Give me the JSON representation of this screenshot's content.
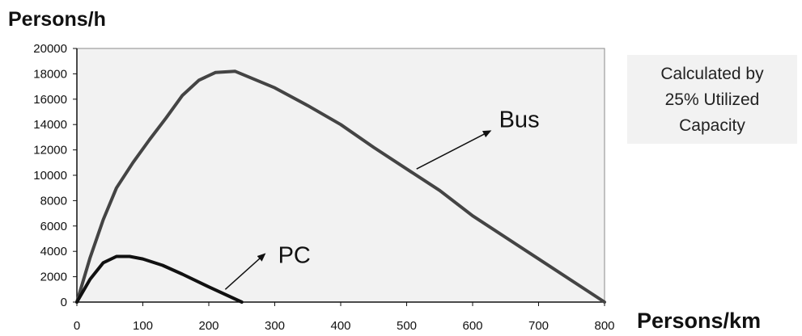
{
  "chart_data": {
    "type": "line",
    "ylabel": "Persons/h",
    "xlabel": "Persons/km",
    "xlim": [
      0,
      800
    ],
    "ylim": [
      0,
      20000
    ],
    "x_ticks": [
      0,
      100,
      200,
      300,
      400,
      500,
      600,
      700,
      800
    ],
    "y_ticks": [
      0,
      2000,
      4000,
      6000,
      8000,
      10000,
      12000,
      14000,
      16000,
      18000,
      20000
    ],
    "grid": false,
    "series": [
      {
        "name": "Bus",
        "color": "#444444",
        "points": [
          [
            0,
            0
          ],
          [
            20,
            3500
          ],
          [
            40,
            6500
          ],
          [
            60,
            9000
          ],
          [
            85,
            11000
          ],
          [
            110,
            12800
          ],
          [
            135,
            14500
          ],
          [
            160,
            16300
          ],
          [
            185,
            17500
          ],
          [
            210,
            18100
          ],
          [
            240,
            18200
          ],
          [
            300,
            16900
          ],
          [
            350,
            15500
          ],
          [
            400,
            14000
          ],
          [
            450,
            12200
          ],
          [
            500,
            10500
          ],
          [
            550,
            8800
          ],
          [
            600,
            6800
          ],
          [
            700,
            3400
          ],
          [
            800,
            0
          ]
        ]
      },
      {
        "name": "PC",
        "color": "#111111",
        "points": [
          [
            0,
            0
          ],
          [
            20,
            1800
          ],
          [
            40,
            3100
          ],
          [
            60,
            3600
          ],
          [
            80,
            3600
          ],
          [
            100,
            3400
          ],
          [
            130,
            2900
          ],
          [
            160,
            2200
          ],
          [
            200,
            1200
          ],
          [
            250,
            0
          ]
        ]
      }
    ],
    "annotations": [
      {
        "text": "Bus",
        "x": 640,
        "y": 13800,
        "arrow_from": [
          515,
          10500
        ],
        "arrow_to": [
          627,
          13500
        ]
      },
      {
        "text": "PC",
        "x": 305,
        "y": 3100,
        "arrow_from": [
          225,
          1000
        ],
        "arrow_to": [
          285,
          3800
        ]
      }
    ]
  },
  "note": {
    "line1": "Calculated  by",
    "line2": "25% Utilized",
    "line3": "Capacity"
  }
}
